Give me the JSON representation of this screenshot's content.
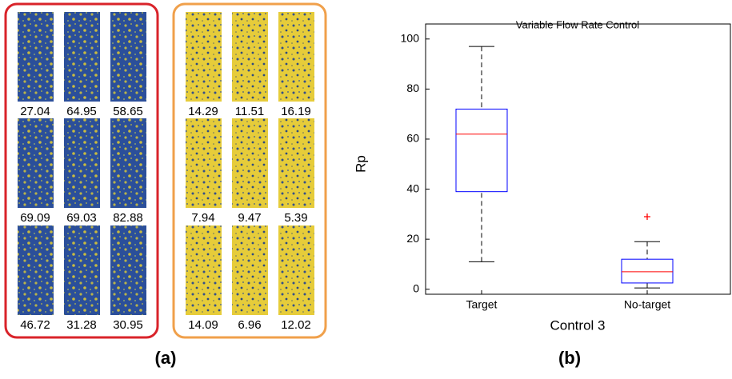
{
  "panel_a": {
    "label": "(a)",
    "groups": [
      {
        "color": "#d9232a",
        "rows": [
          [
            27.04,
            64.95,
            58.65
          ],
          [
            69.09,
            69.03,
            82.88
          ],
          [
            46.72,
            31.28,
            30.95
          ]
        ]
      },
      {
        "color": "#f0a04b",
        "rows": [
          [
            14.29,
            11.51,
            16.19
          ],
          [
            7.94,
            9.47,
            5.39
          ],
          [
            14.09,
            6.96,
            12.02
          ]
        ]
      }
    ]
  },
  "panel_b": {
    "label": "(b)"
  },
  "chart_data": {
    "type": "box",
    "title": "Variable Flow Rate Control",
    "y_label": "Rp",
    "x_label": "Control 3",
    "categories": [
      "Target",
      "No-target"
    ],
    "boxes": [
      {
        "whislo": 11,
        "q1": 39,
        "med": 62,
        "q3": 72,
        "whishi": 97,
        "fliers": []
      },
      {
        "whislo": 0.5,
        "q1": 2.5,
        "med": 7,
        "q3": 12,
        "whishi": 19,
        "fliers": [
          29
        ]
      }
    ],
    "ylim": [
      -2,
      106
    ],
    "yticks": [
      0,
      20,
      40,
      60,
      80,
      100
    ],
    "box_color": "#0000ff",
    "median_color": "#ff0000",
    "whisker_color": "#000000",
    "flier_color": "#ff0000"
  }
}
